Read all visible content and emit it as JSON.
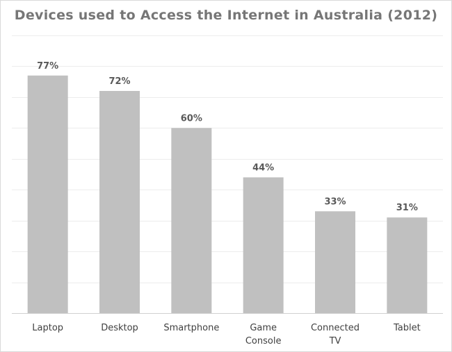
{
  "chart_data": {
    "type": "bar",
    "title": "Devices used to Access the Internet in Australia (2012)",
    "xlabel": "",
    "ylabel": "",
    "ylim": [
      0,
      90
    ],
    "grid": true,
    "categories": [
      "Laptop",
      "Desktop",
      "Smartphone",
      "Game Console",
      "Connected TV",
      "Tablet"
    ],
    "category_lines": [
      [
        "Laptop"
      ],
      [
        "Desktop"
      ],
      [
        "Smartphone"
      ],
      [
        "Game",
        "Console"
      ],
      [
        "Connected",
        "TV"
      ],
      [
        "Tablet"
      ]
    ],
    "values": [
      77,
      72,
      60,
      44,
      33,
      31
    ],
    "data_labels": [
      "77%",
      "72%",
      "60%",
      "44%",
      "33%",
      "31%"
    ],
    "bar_color": "#c0c0c0"
  }
}
